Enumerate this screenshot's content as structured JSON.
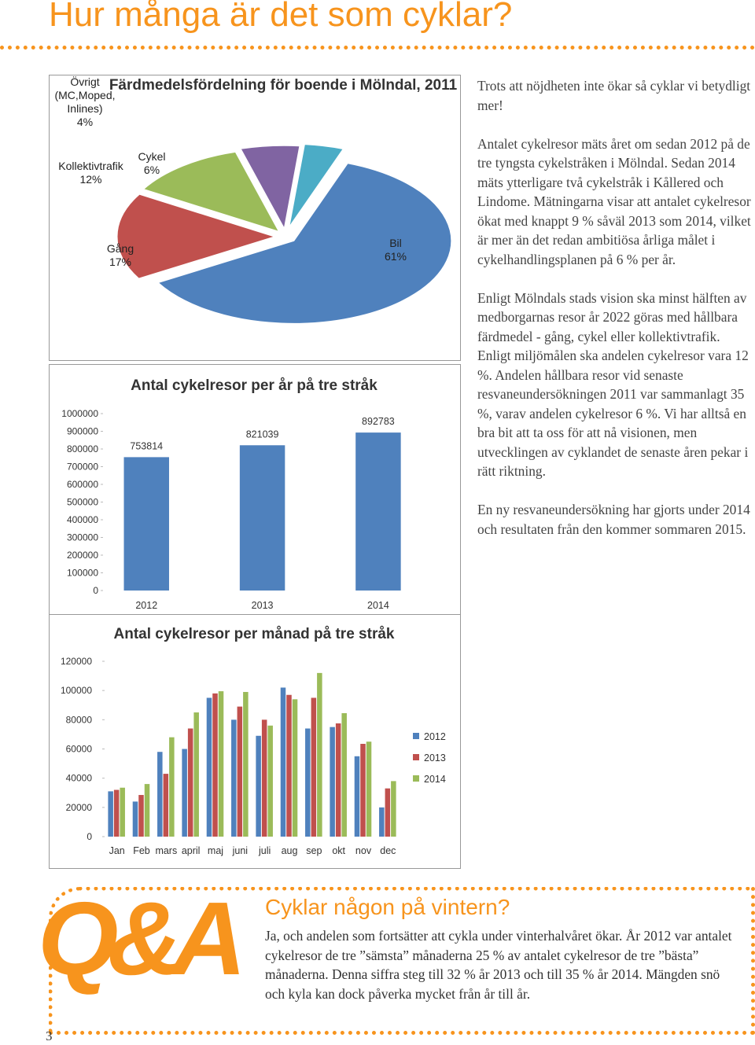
{
  "header": {
    "title": "Hur många är det som cyklar?"
  },
  "paragraphs": [
    "Trots att nöjdheten inte ökar så cyklar vi betydligt mer!",
    "Antalet cykelresor mäts året om sedan 2012 på de tre tyngsta cykelstråken i Mölndal. Sedan 2014 mäts ytterligare två cykelstråk i Kållered och Lindome. Mätningarna visar att antalet cykelresor ökat med knappt 9 % såväl 2013 som 2014, vilket är mer än det redan ambitiösa årliga målet i cykelhandlingsplanen på 6 % per år.",
    "Enligt Mölndals stads vision ska minst hälften av medborgarnas resor år 2022 göras med hållbara färdmedel - gång, cykel eller kollektivtrafik. Enligt miljömålen ska andelen cykelresor vara 12 %. Andelen hållbara resor vid senaste resvaneundersökningen 2011 var sammanlagt 35 %, varav andelen cykelresor 6 %. Vi har alltså en bra bit att ta oss för att nå visionen, men utvecklingen av cyklandet de senaste åren pekar i rätt riktning.",
    "En ny resvaneundersökning har gjorts under 2014 och resultaten från den kommer sommaren 2015."
  ],
  "qa": {
    "logo": "Q&A",
    "heading": "Cyklar någon på vintern?",
    "text": "Ja, och andelen som fortsätter att cykla under vinterhalvåret ökar. År 2012 var antalet cykelresor de tre ”sämsta” månaderna 25 % av antalet cykelresor de tre ”bästa” månaderna. Denna siffra steg till 32 % år 2013 och till 35 % år 2014. Mängden snö och kyla kan dock påverka mycket från år till år."
  },
  "page_number": "3",
  "chart_data": [
    {
      "type": "pie",
      "title": "Färdmedelsfördelning för boende i Mölndal, 2011",
      "categories": [
        "Bil",
        "Gång",
        "Kollektivtrafik",
        "Cykel",
        "Övrigt (MC,Moped, Inlines)"
      ],
      "values": [
        61,
        17,
        12,
        6,
        4
      ],
      "value_labels": [
        "61%",
        "17%",
        "12%",
        "6%",
        "4%"
      ],
      "colors": [
        "#4f81bd",
        "#c0504d",
        "#9bbb59",
        "#8064a2",
        "#4bacc6"
      ]
    },
    {
      "type": "bar",
      "title": "Antal cykelresor per år på tre stråk",
      "categories": [
        "2012",
        "2013",
        "2014"
      ],
      "values": [
        753814,
        821039,
        892783
      ],
      "color": "#4f81bd",
      "ylim": [
        0,
        1000000
      ],
      "yticks": [
        0,
        100000,
        200000,
        300000,
        400000,
        500000,
        600000,
        700000,
        800000,
        900000,
        1000000
      ]
    },
    {
      "type": "grouped-bar",
      "title": "Antal cykelresor per månad på tre stråk",
      "categories": [
        "Jan",
        "Feb",
        "mars",
        "april",
        "maj",
        "juni",
        "juli",
        "aug",
        "sep",
        "okt",
        "nov",
        "dec"
      ],
      "series": [
        {
          "name": "2012",
          "color": "#4f81bd",
          "values": [
            31000,
            24000,
            58000,
            60000,
            95000,
            80000,
            69000,
            102000,
            74000,
            75000,
            55000,
            20000
          ]
        },
        {
          "name": "2013",
          "color": "#c0504d",
          "values": [
            32000,
            28500,
            43000,
            74000,
            98000,
            89000,
            80000,
            97000,
            95000,
            77500,
            63500,
            33000
          ]
        },
        {
          "name": "2014",
          "color": "#9bbb59",
          "values": [
            33500,
            36000,
            68000,
            85000,
            99500,
            99000,
            76000,
            94000,
            112000,
            84500,
            65000,
            38000
          ]
        }
      ],
      "ylim": [
        0,
        120000
      ],
      "yticks": [
        0,
        20000,
        40000,
        60000,
        80000,
        100000,
        120000
      ]
    }
  ]
}
